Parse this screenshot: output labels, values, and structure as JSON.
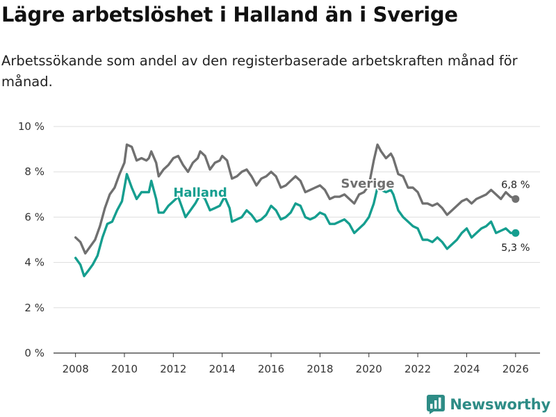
{
  "header": {
    "title": "Lägre arbetslöshet i Halland än i Sverige",
    "subtitle": "Arbetssökande som andel av den registerbaserade arbetskraften månad för månad."
  },
  "brand": {
    "name": "Newsworthy",
    "icon": "newsworthy-logo-icon",
    "color": "#2e8c86"
  },
  "chart_data": {
    "type": "line",
    "title": "Lägre arbetslöshet i Halland än i Sverige",
    "subtitle": "Arbetssökande som andel av den registerbaserade arbetskraften månad för månad.",
    "xlabel": "",
    "ylabel": "",
    "xlim": [
      2007.1,
      2027.0
    ],
    "ylim": [
      0,
      10
    ],
    "xticks": [
      2008,
      2010,
      2012,
      2014,
      2016,
      2018,
      2020,
      2022,
      2024,
      2026
    ],
    "xtick_labels": [
      "2008",
      "2010",
      "2012",
      "2014",
      "2016",
      "2018",
      "2020",
      "2022",
      "2024",
      "2026"
    ],
    "yticks": [
      0,
      2,
      4,
      6,
      8,
      10
    ],
    "ytick_labels": [
      "0 %",
      "2 %",
      "4 %",
      "6 %",
      "8 %",
      "10 %"
    ],
    "grid": true,
    "series": [
      {
        "name": "Sverige",
        "label": "Sverige",
        "color": "#707070",
        "end_label": "6,8 %",
        "points": [
          [
            2008.0,
            5.1
          ],
          [
            2008.2,
            4.9
          ],
          [
            2008.4,
            4.4
          ],
          [
            2008.6,
            4.7
          ],
          [
            2008.8,
            5.0
          ],
          [
            2009.0,
            5.6
          ],
          [
            2009.2,
            6.4
          ],
          [
            2009.4,
            7.0
          ],
          [
            2009.6,
            7.3
          ],
          [
            2009.8,
            7.9
          ],
          [
            2010.0,
            8.4
          ],
          [
            2010.1,
            9.2
          ],
          [
            2010.3,
            9.1
          ],
          [
            2010.5,
            8.5
          ],
          [
            2010.7,
            8.6
          ],
          [
            2010.9,
            8.5
          ],
          [
            2011.0,
            8.6
          ],
          [
            2011.1,
            8.9
          ],
          [
            2011.3,
            8.4
          ],
          [
            2011.4,
            7.8
          ],
          [
            2011.6,
            8.1
          ],
          [
            2011.8,
            8.3
          ],
          [
            2012.0,
            8.6
          ],
          [
            2012.2,
            8.7
          ],
          [
            2012.4,
            8.3
          ],
          [
            2012.6,
            8.0
          ],
          [
            2012.8,
            8.4
          ],
          [
            2013.0,
            8.6
          ],
          [
            2013.1,
            8.9
          ],
          [
            2013.3,
            8.7
          ],
          [
            2013.5,
            8.1
          ],
          [
            2013.7,
            8.4
          ],
          [
            2013.9,
            8.5
          ],
          [
            2014.0,
            8.7
          ],
          [
            2014.2,
            8.5
          ],
          [
            2014.4,
            7.7
          ],
          [
            2014.6,
            7.8
          ],
          [
            2014.8,
            8.0
          ],
          [
            2015.0,
            8.1
          ],
          [
            2015.2,
            7.8
          ],
          [
            2015.4,
            7.4
          ],
          [
            2015.6,
            7.7
          ],
          [
            2015.8,
            7.8
          ],
          [
            2016.0,
            8.0
          ],
          [
            2016.2,
            7.8
          ],
          [
            2016.4,
            7.3
          ],
          [
            2016.6,
            7.4
          ],
          [
            2016.8,
            7.6
          ],
          [
            2017.0,
            7.8
          ],
          [
            2017.2,
            7.6
          ],
          [
            2017.4,
            7.1
          ],
          [
            2017.6,
            7.2
          ],
          [
            2017.8,
            7.3
          ],
          [
            2018.0,
            7.4
          ],
          [
            2018.2,
            7.2
          ],
          [
            2018.4,
            6.8
          ],
          [
            2018.6,
            6.9
          ],
          [
            2018.8,
            6.9
          ],
          [
            2019.0,
            7.0
          ],
          [
            2019.2,
            6.8
          ],
          [
            2019.4,
            6.6
          ],
          [
            2019.6,
            7.0
          ],
          [
            2019.8,
            7.1
          ],
          [
            2020.0,
            7.4
          ],
          [
            2020.2,
            8.5
          ],
          [
            2020.35,
            9.2
          ],
          [
            2020.5,
            8.9
          ],
          [
            2020.7,
            8.6
          ],
          [
            2020.9,
            8.8
          ],
          [
            2021.0,
            8.6
          ],
          [
            2021.2,
            7.9
          ],
          [
            2021.4,
            7.8
          ],
          [
            2021.6,
            7.3
          ],
          [
            2021.8,
            7.3
          ],
          [
            2022.0,
            7.1
          ],
          [
            2022.2,
            6.6
          ],
          [
            2022.4,
            6.6
          ],
          [
            2022.6,
            6.5
          ],
          [
            2022.8,
            6.6
          ],
          [
            2023.0,
            6.4
          ],
          [
            2023.2,
            6.1
          ],
          [
            2023.4,
            6.3
          ],
          [
            2023.6,
            6.5
          ],
          [
            2023.8,
            6.7
          ],
          [
            2024.0,
            6.8
          ],
          [
            2024.2,
            6.6
          ],
          [
            2024.4,
            6.8
          ],
          [
            2024.6,
            6.9
          ],
          [
            2024.8,
            7.0
          ],
          [
            2025.0,
            7.2
          ],
          [
            2025.2,
            7.0
          ],
          [
            2025.4,
            6.8
          ],
          [
            2025.6,
            7.1
          ],
          [
            2025.8,
            6.9
          ],
          [
            2026.0,
            6.8
          ]
        ]
      },
      {
        "name": "Halland",
        "label": "Halland",
        "color": "#159e8f",
        "end_label": "5,3 %",
        "points": [
          [
            2008.0,
            4.2
          ],
          [
            2008.2,
            3.9
          ],
          [
            2008.35,
            3.4
          ],
          [
            2008.5,
            3.6
          ],
          [
            2008.7,
            3.9
          ],
          [
            2008.9,
            4.3
          ],
          [
            2009.1,
            5.1
          ],
          [
            2009.3,
            5.7
          ],
          [
            2009.5,
            5.8
          ],
          [
            2009.7,
            6.3
          ],
          [
            2009.9,
            6.7
          ],
          [
            2010.1,
            7.9
          ],
          [
            2010.3,
            7.3
          ],
          [
            2010.5,
            6.8
          ],
          [
            2010.7,
            7.1
          ],
          [
            2010.9,
            7.1
          ],
          [
            2011.0,
            7.1
          ],
          [
            2011.1,
            7.6
          ],
          [
            2011.3,
            6.8
          ],
          [
            2011.4,
            6.2
          ],
          [
            2011.6,
            6.2
          ],
          [
            2011.8,
            6.5
          ],
          [
            2012.0,
            6.7
          ],
          [
            2012.2,
            6.9
          ],
          [
            2012.4,
            6.3
          ],
          [
            2012.5,
            6.0
          ],
          [
            2012.7,
            6.3
          ],
          [
            2012.9,
            6.6
          ],
          [
            2013.1,
            7.0
          ],
          [
            2013.3,
            6.8
          ],
          [
            2013.5,
            6.3
          ],
          [
            2013.7,
            6.4
          ],
          [
            2013.9,
            6.5
          ],
          [
            2014.1,
            6.9
          ],
          [
            2014.3,
            6.4
          ],
          [
            2014.4,
            5.8
          ],
          [
            2014.6,
            5.9
          ],
          [
            2014.8,
            6.0
          ],
          [
            2015.0,
            6.3
          ],
          [
            2015.2,
            6.1
          ],
          [
            2015.4,
            5.8
          ],
          [
            2015.6,
            5.9
          ],
          [
            2015.8,
            6.1
          ],
          [
            2016.0,
            6.5
          ],
          [
            2016.2,
            6.3
          ],
          [
            2016.4,
            5.9
          ],
          [
            2016.6,
            6.0
          ],
          [
            2016.8,
            6.2
          ],
          [
            2017.0,
            6.6
          ],
          [
            2017.2,
            6.5
          ],
          [
            2017.4,
            6.0
          ],
          [
            2017.6,
            5.9
          ],
          [
            2017.8,
            6.0
          ],
          [
            2018.0,
            6.2
          ],
          [
            2018.2,
            6.1
          ],
          [
            2018.4,
            5.7
          ],
          [
            2018.6,
            5.7
          ],
          [
            2018.8,
            5.8
          ],
          [
            2019.0,
            5.9
          ],
          [
            2019.2,
            5.7
          ],
          [
            2019.4,
            5.3
          ],
          [
            2019.6,
            5.5
          ],
          [
            2019.8,
            5.7
          ],
          [
            2020.0,
            6.0
          ],
          [
            2020.2,
            6.6
          ],
          [
            2020.35,
            7.3
          ],
          [
            2020.5,
            7.2
          ],
          [
            2020.7,
            7.1
          ],
          [
            2020.9,
            7.2
          ],
          [
            2021.0,
            7.0
          ],
          [
            2021.2,
            6.3
          ],
          [
            2021.4,
            6.0
          ],
          [
            2021.6,
            5.8
          ],
          [
            2021.8,
            5.6
          ],
          [
            2022.0,
            5.5
          ],
          [
            2022.2,
            5.0
          ],
          [
            2022.4,
            5.0
          ],
          [
            2022.6,
            4.9
          ],
          [
            2022.8,
            5.1
          ],
          [
            2023.0,
            4.9
          ],
          [
            2023.2,
            4.6
          ],
          [
            2023.4,
            4.8
          ],
          [
            2023.6,
            5.0
          ],
          [
            2023.8,
            5.3
          ],
          [
            2024.0,
            5.5
          ],
          [
            2024.2,
            5.1
          ],
          [
            2024.4,
            5.3
          ],
          [
            2024.6,
            5.5
          ],
          [
            2024.8,
            5.6
          ],
          [
            2025.0,
            5.8
          ],
          [
            2025.2,
            5.3
          ],
          [
            2025.4,
            5.4
          ],
          [
            2025.6,
            5.5
          ],
          [
            2025.8,
            5.3
          ],
          [
            2026.0,
            5.3
          ]
        ]
      }
    ]
  }
}
